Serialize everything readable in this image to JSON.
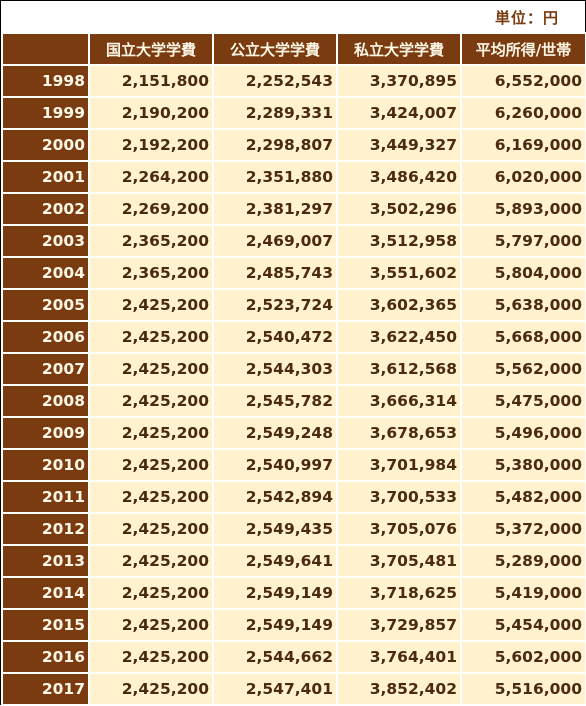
{
  "unit_label": "単位：円",
  "headers": [
    "",
    "国立大学学費",
    "公立大学学費",
    "私立大学学費",
    "平均所得/世帯"
  ],
  "rows": [
    {
      "year": "1998",
      "national": "2,151,800",
      "public": "2,252,543",
      "private": "3,370,895",
      "income": "6,552,000"
    },
    {
      "year": "1999",
      "national": "2,190,200",
      "public": "2,289,331",
      "private": "3,424,007",
      "income": "6,260,000"
    },
    {
      "year": "2000",
      "national": "2,192,200",
      "public": "2,298,807",
      "private": "3,449,327",
      "income": "6,169,000"
    },
    {
      "year": "2001",
      "national": "2,264,200",
      "public": "2,351,880",
      "private": "3,486,420",
      "income": "6,020,000"
    },
    {
      "year": "2002",
      "national": "2,269,200",
      "public": "2,381,297",
      "private": "3,502,296",
      "income": "5,893,000"
    },
    {
      "year": "2003",
      "national": "2,365,200",
      "public": "2,469,007",
      "private": "3,512,958",
      "income": "5,797,000"
    },
    {
      "year": "2004",
      "national": "2,365,200",
      "public": "2,485,743",
      "private": "3,551,602",
      "income": "5,804,000"
    },
    {
      "year": "2005",
      "national": "2,425,200",
      "public": "2,523,724",
      "private": "3,602,365",
      "income": "5,638,000"
    },
    {
      "year": "2006",
      "national": "2,425,200",
      "public": "2,540,472",
      "private": "3,622,450",
      "income": "5,668,000"
    },
    {
      "year": "2007",
      "national": "2,425,200",
      "public": "2,544,303",
      "private": "3,612,568",
      "income": "5,562,000"
    },
    {
      "year": "2008",
      "national": "2,425,200",
      "public": "2,545,782",
      "private": "3,666,314",
      "income": "5,475,000"
    },
    {
      "year": "2009",
      "national": "2,425,200",
      "public": "2,549,248",
      "private": "3,678,653",
      "income": "5,496,000"
    },
    {
      "year": "2010",
      "national": "2,425,200",
      "public": "2,540,997",
      "private": "3,701,984",
      "income": "5,380,000"
    },
    {
      "year": "2011",
      "national": "2,425,200",
      "public": "2,542,894",
      "private": "3,700,533",
      "income": "5,482,000"
    },
    {
      "year": "2012",
      "national": "2,425,200",
      "public": "2,549,435",
      "private": "3,705,076",
      "income": "5,372,000"
    },
    {
      "year": "2013",
      "national": "2,425,200",
      "public": "2,549,641",
      "private": "3,705,481",
      "income": "5,289,000"
    },
    {
      "year": "2014",
      "national": "2,425,200",
      "public": "2,549,149",
      "private": "3,718,625",
      "income": "5,419,000"
    },
    {
      "year": "2015",
      "national": "2,425,200",
      "public": "2,549,149",
      "private": "3,729,857",
      "income": "5,454,000"
    },
    {
      "year": "2016",
      "national": "2,425,200",
      "public": "2,544,662",
      "private": "3,764,401",
      "income": "5,602,000"
    },
    {
      "year": "2017",
      "national": "2,425,200",
      "public": "2,547,401",
      "private": "3,852,402",
      "income": "5,516,000"
    }
  ]
}
